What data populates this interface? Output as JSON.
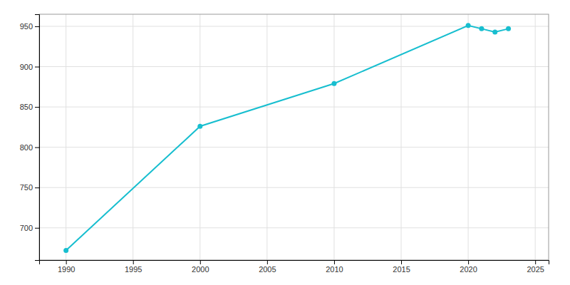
{
  "chart_data": {
    "type": "line",
    "x": [
      1990,
      2000,
      2010,
      2020,
      2021,
      2022,
      2023
    ],
    "values": [
      672,
      826,
      879,
      951,
      947,
      943,
      947
    ],
    "color": "#17becf",
    "marker": "circle",
    "xlim": [
      1988,
      2026
    ],
    "ylim": [
      660,
      965
    ],
    "xticks": [
      1990,
      1995,
      2000,
      2005,
      2010,
      2015,
      2020,
      2025
    ],
    "yticks": [
      700,
      750,
      800,
      850,
      900,
      950
    ],
    "grid": true
  }
}
